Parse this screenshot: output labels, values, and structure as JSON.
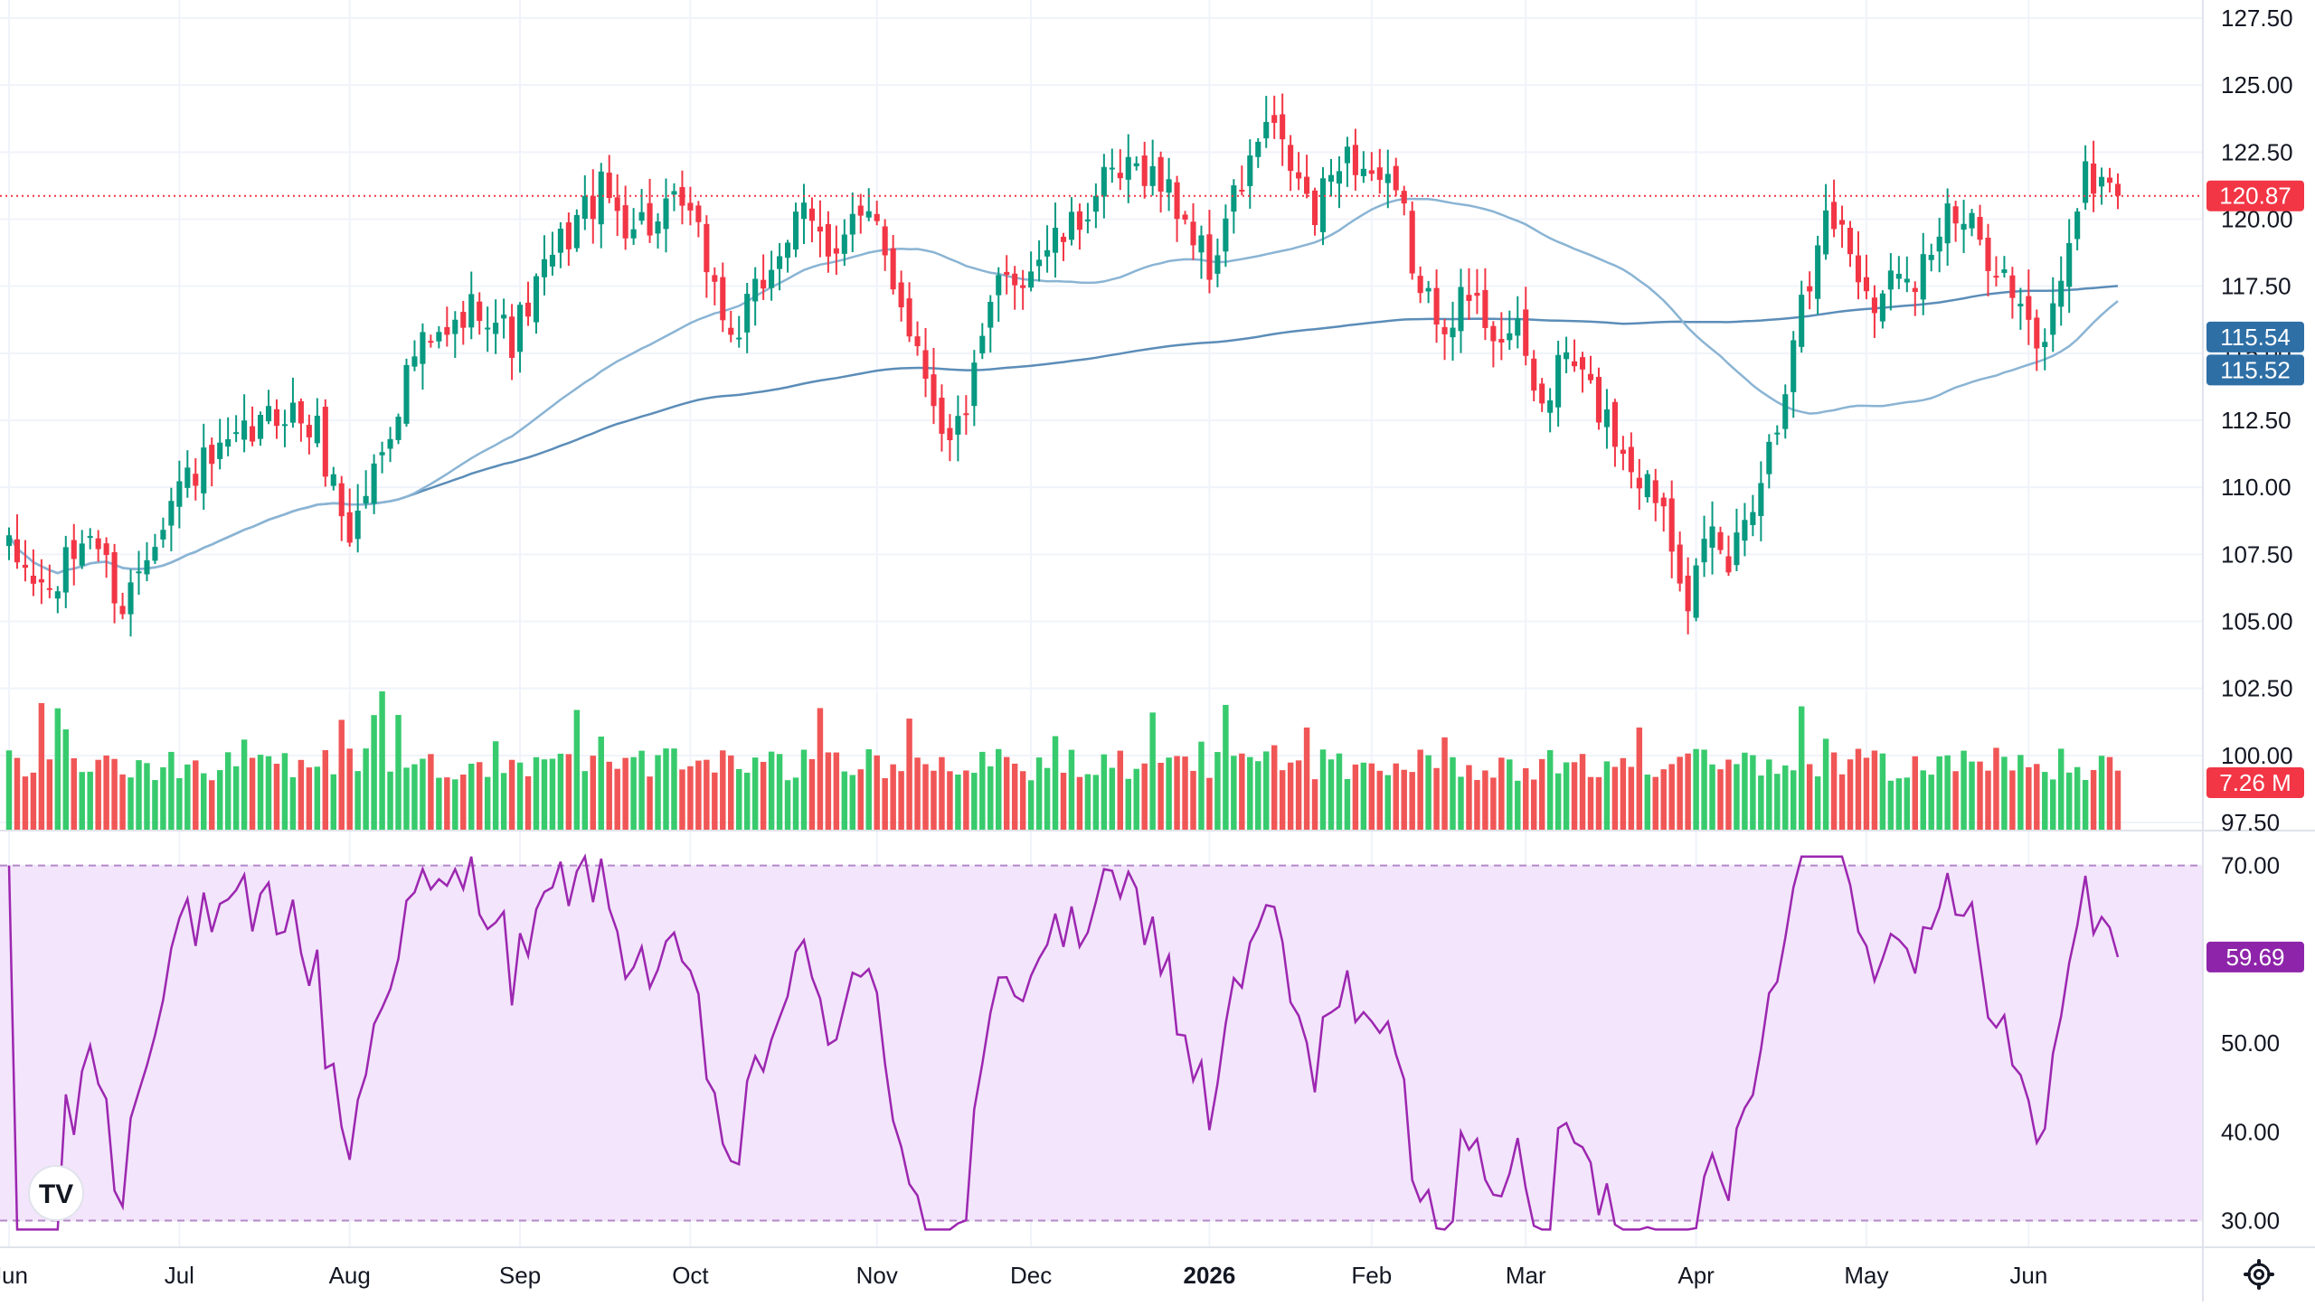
{
  "colors": {
    "up": "#26a69a",
    "up_candle": "#089981",
    "down": "#f23645",
    "vol_up": "#22c55e",
    "vol_down": "#ef4444",
    "ma_line": "#5b8db8",
    "rsi_line": "#9c27b0",
    "rsi_band": "#f3e5fc",
    "grid": "#f0f3fa",
    "axis_text": "#131722",
    "last_price_badge": "#f23645",
    "ma_badge": "#2e6fa6",
    "rsi_badge": "#8e24aa"
  },
  "chart_data": {
    "type": "candlestick",
    "price_axis": {
      "ticks": [
        "127.50",
        "125.00",
        "122.50",
        "120.00",
        "117.50",
        "115.00",
        "112.50",
        "110.00",
        "107.50",
        "105.00",
        "102.50",
        "100.00",
        "97.50"
      ],
      "range": [
        97.5,
        127.5
      ]
    },
    "time_axis": {
      "labels": [
        {
          "label": "Jun",
          "bar": 0,
          "bold": false
        },
        {
          "label": "Jul",
          "bar": 21,
          "bold": false
        },
        {
          "label": "Aug",
          "bar": 42,
          "bold": false
        },
        {
          "label": "Sep",
          "bar": 63,
          "bold": false
        },
        {
          "label": "Oct",
          "bar": 84,
          "bold": false
        },
        {
          "label": "Nov",
          "bar": 107,
          "bold": false
        },
        {
          "label": "Dec",
          "bar": 126,
          "bold": false
        },
        {
          "label": "2026",
          "bar": 148,
          "bold": true
        },
        {
          "label": "Feb",
          "bar": 168,
          "bold": false
        },
        {
          "label": "Mar",
          "bar": 187,
          "bold": false
        },
        {
          "label": "Apr",
          "bar": 208,
          "bold": false
        },
        {
          "label": "May",
          "bar": 229,
          "bold": false
        },
        {
          "label": "Jun",
          "bar": 249,
          "bold": false
        }
      ]
    },
    "close_anchors": [
      [
        0,
        107.5
      ],
      [
        5,
        106.0
      ],
      [
        10,
        108.5
      ],
      [
        14,
        105.5
      ],
      [
        18,
        108.5
      ],
      [
        22,
        110.5
      ],
      [
        26,
        111.0
      ],
      [
        30,
        112.0
      ],
      [
        34,
        113.0
      ],
      [
        38,
        112.0
      ],
      [
        42,
        108.2
      ],
      [
        46,
        111.5
      ],
      [
        50,
        115.0
      ],
      [
        54,
        115.5
      ],
      [
        58,
        117.0
      ],
      [
        62,
        115.5
      ],
      [
        66,
        118.0
      ],
      [
        70,
        120.0
      ],
      [
        73,
        121.0
      ],
      [
        76,
        120.0
      ],
      [
        80,
        119.8
      ],
      [
        83,
        120.5
      ],
      [
        86,
        118.5
      ],
      [
        89,
        115.5
      ],
      [
        92,
        117.0
      ],
      [
        95,
        119.0
      ],
      [
        98,
        120.0
      ],
      [
        101,
        119.0
      ],
      [
        104,
        120.0
      ],
      [
        107,
        119.5
      ],
      [
        110,
        117.0
      ],
      [
        114,
        113.5
      ],
      [
        116,
        111.5
      ],
      [
        119,
        114.0
      ],
      [
        122,
        117.5
      ],
      [
        125,
        118.0
      ],
      [
        128,
        119.0
      ],
      [
        131,
        119.5
      ],
      [
        134,
        121.0
      ],
      [
        137,
        121.5
      ],
      [
        140,
        122.0
      ],
      [
        143,
        121.0
      ],
      [
        146,
        119.5
      ],
      [
        148,
        118.0
      ],
      [
        150,
        120.0
      ],
      [
        153,
        122.0
      ],
      [
        155,
        123.5
      ],
      [
        158,
        122.0
      ],
      [
        161,
        120.0
      ],
      [
        164,
        122.5
      ],
      [
        167,
        122.0
      ],
      [
        170,
        121.0
      ],
      [
        172,
        120.0
      ],
      [
        174,
        117.0
      ],
      [
        177,
        116.5
      ],
      [
        180,
        117.0
      ],
      [
        183,
        116.0
      ],
      [
        186,
        115.5
      ],
      [
        189,
        113.0
      ],
      [
        192,
        115.0
      ],
      [
        195,
        113.5
      ],
      [
        198,
        112.0
      ],
      [
        201,
        110.5
      ],
      [
        204,
        109.5
      ],
      [
        207,
        106.0
      ],
      [
        210,
        108.0
      ],
      [
        212,
        107.0
      ],
      [
        214,
        109.0
      ],
      [
        216,
        110.5
      ],
      [
        218,
        112.5
      ],
      [
        220,
        116.0
      ],
      [
        222,
        117.5
      ],
      [
        224,
        120.5
      ],
      [
        226,
        119.5
      ],
      [
        229,
        117.5
      ],
      [
        231,
        117.0
      ],
      [
        233,
        118.5
      ],
      [
        235,
        118.0
      ],
      [
        237,
        119.0
      ],
      [
        239,
        120.0
      ],
      [
        242,
        119.5
      ],
      [
        245,
        118.5
      ],
      [
        248,
        116.5
      ],
      [
        250,
        115.0
      ],
      [
        252,
        116.5
      ],
      [
        254,
        119.5
      ],
      [
        256,
        121.5
      ],
      [
        258,
        121.5
      ],
      [
        260,
        120.87
      ]
    ],
    "bar_count": 261,
    "volume": {
      "last_label": "7.26 M",
      "scale_max": 20
    },
    "rsi": {
      "ticks": [
        "70.00",
        "60.00",
        "50.00",
        "40.00",
        "30.00"
      ],
      "range": [
        27,
        72
      ],
      "upper": 70,
      "lower": 30,
      "last_value": 59.69,
      "last_label": "59.69"
    },
    "indicators": {
      "last_price": 120.87,
      "last_price_label": "120.87",
      "ma50_last": 115.54,
      "ma50_label": "115.54",
      "ma200_last": 115.52,
      "ma200_label": "115.52"
    },
    "grid": true
  },
  "icons": {
    "logo": "tradingview-logo-icon",
    "settings": "gear-icon"
  },
  "logo_text": "TV"
}
